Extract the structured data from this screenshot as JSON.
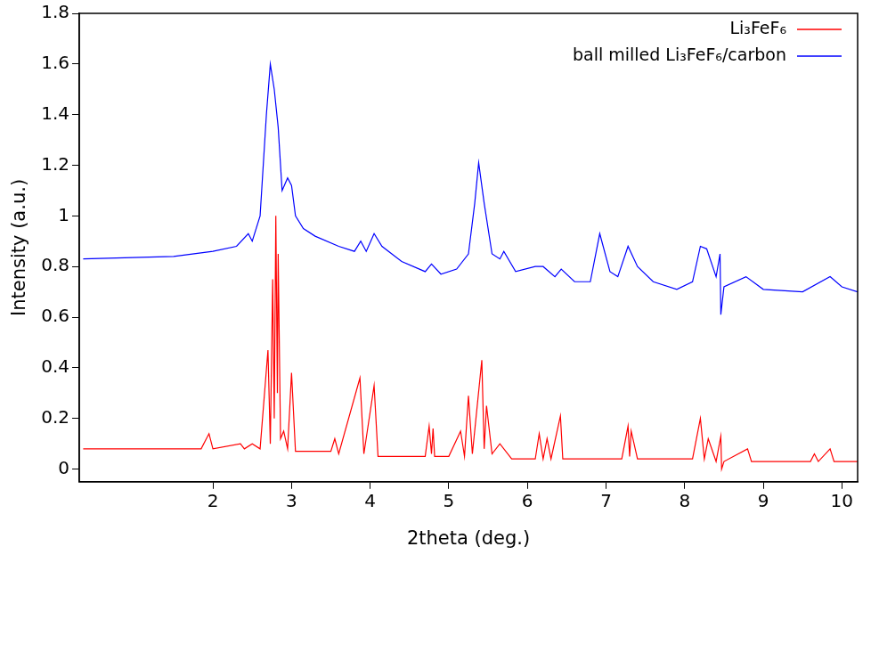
{
  "chart_data": {
    "type": "line",
    "x_label": "2theta (deg.)",
    "y_label": "Intensity (a.u.)",
    "xlim": [
      0.3,
      10.2
    ],
    "xticks": [
      2,
      3,
      4,
      5,
      6,
      7,
      8,
      9,
      10
    ],
    "ylim": [
      -0.05,
      1.8
    ],
    "yticks": [
      0,
      0.2,
      0.4,
      0.6,
      0.8,
      1,
      1.2,
      1.4,
      1.6,
      1.8
    ],
    "grid": false,
    "legend": "top-right",
    "series": [
      {
        "name": "Li₃FeF₆",
        "color": "#ff0000",
        "x": [
          0.35,
          1.85,
          1.95,
          2.0,
          2.35,
          2.4,
          2.5,
          2.6,
          2.7,
          2.73,
          2.76,
          2.78,
          2.8,
          2.82,
          2.83,
          2.86,
          2.9,
          2.95,
          3.0,
          3.05,
          3.5,
          3.55,
          3.6,
          3.87,
          3.92,
          4.05,
          4.1,
          4.7,
          4.75,
          4.78,
          4.8,
          4.82,
          5.0,
          5.15,
          5.2,
          5.25,
          5.3,
          5.42,
          5.45,
          5.48,
          5.55,
          5.65,
          5.8,
          6.1,
          6.15,
          6.2,
          6.25,
          6.3,
          6.42,
          6.45,
          7.2,
          7.28,
          7.3,
          7.32,
          7.4,
          8.1,
          8.2,
          8.25,
          8.3,
          8.4,
          8.46,
          8.47,
          8.5,
          8.8,
          8.85,
          9.6,
          9.65,
          9.7,
          9.85,
          9.9,
          10.2
        ],
        "values": [
          0.08,
          0.08,
          0.14,
          0.08,
          0.1,
          0.08,
          0.1,
          0.08,
          0.47,
          0.1,
          0.75,
          0.2,
          1.0,
          0.3,
          0.85,
          0.12,
          0.15,
          0.08,
          0.38,
          0.07,
          0.07,
          0.12,
          0.06,
          0.36,
          0.06,
          0.33,
          0.05,
          0.05,
          0.17,
          0.06,
          0.16,
          0.05,
          0.05,
          0.15,
          0.05,
          0.29,
          0.06,
          0.43,
          0.08,
          0.25,
          0.06,
          0.1,
          0.04,
          0.04,
          0.14,
          0.04,
          0.12,
          0.04,
          0.21,
          0.04,
          0.04,
          0.17,
          0.05,
          0.15,
          0.04,
          0.04,
          0.2,
          0.04,
          0.12,
          0.03,
          0.13,
          0.0,
          0.03,
          0.08,
          0.03,
          0.03,
          0.06,
          0.03,
          0.08,
          0.03,
          0.03
        ]
      },
      {
        "name": "ball milled Li₃FeF₆/carbon",
        "color": "#0000ff",
        "x": [
          0.35,
          1.5,
          2.0,
          2.3,
          2.45,
          2.5,
          2.6,
          2.68,
          2.73,
          2.78,
          2.83,
          2.88,
          2.95,
          3.0,
          3.05,
          3.15,
          3.3,
          3.6,
          3.8,
          3.88,
          3.95,
          4.05,
          4.15,
          4.4,
          4.7,
          4.78,
          4.9,
          5.1,
          5.25,
          5.33,
          5.38,
          5.45,
          5.55,
          5.65,
          5.7,
          5.85,
          6.1,
          6.2,
          6.35,
          6.43,
          6.6,
          6.8,
          6.92,
          7.05,
          7.15,
          7.28,
          7.4,
          7.6,
          7.9,
          8.1,
          8.2,
          8.28,
          8.4,
          8.45,
          8.46,
          8.5,
          8.78,
          9.0,
          9.5,
          9.85,
          10.0,
          10.2
        ],
        "values": [
          0.83,
          0.84,
          0.86,
          0.88,
          0.93,
          0.9,
          1.0,
          1.4,
          1.6,
          1.5,
          1.35,
          1.1,
          1.15,
          1.12,
          1.0,
          0.95,
          0.92,
          0.88,
          0.86,
          0.9,
          0.86,
          0.93,
          0.88,
          0.82,
          0.78,
          0.81,
          0.77,
          0.79,
          0.85,
          1.05,
          1.21,
          1.05,
          0.85,
          0.83,
          0.86,
          0.78,
          0.8,
          0.8,
          0.76,
          0.79,
          0.74,
          0.74,
          0.93,
          0.78,
          0.76,
          0.88,
          0.8,
          0.74,
          0.71,
          0.74,
          0.88,
          0.87,
          0.76,
          0.85,
          0.61,
          0.72,
          0.76,
          0.71,
          0.7,
          0.76,
          0.72,
          0.7
        ]
      }
    ]
  }
}
